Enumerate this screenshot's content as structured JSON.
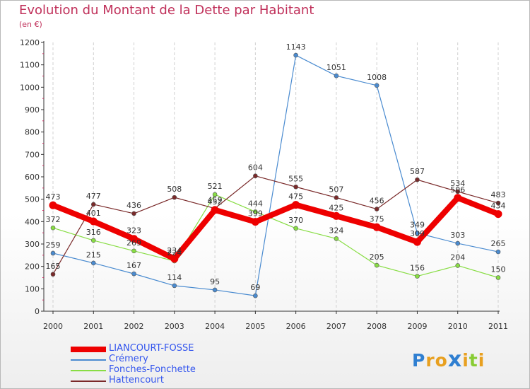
{
  "header": {
    "title": "Evolution du Montant de la Dette par Habitant",
    "subtitle": "(en €)"
  },
  "colors": {
    "title": "#c0305a",
    "axis": "#333333",
    "grid": "#d0d0d0",
    "legend_text": "#3355ee"
  },
  "chart_data": {
    "type": "line",
    "title": "Evolution du Montant de la Dette par Habitant",
    "subtitle": "(en €)",
    "x": [
      "2000",
      "2001",
      "2002",
      "2003",
      "2004",
      "2005",
      "2006",
      "2007",
      "2008",
      "2009",
      "2010",
      "2011"
    ],
    "ylim": [
      0,
      1200
    ],
    "yticks": [
      0,
      100,
      200,
      300,
      400,
      500,
      600,
      700,
      800,
      900,
      1000,
      1100,
      1200
    ],
    "grid": "vertical dashed",
    "legend_placement": "bottom-left",
    "series": [
      {
        "name": "LIANCOURT-FOSSE",
        "color": "#ee0000",
        "values": [
          473,
          401,
          323,
          234,
          452,
          399,
          475,
          425,
          375,
          309,
          506,
          434
        ],
        "labels": [
          "473",
          "401",
          "323",
          "234",
          "452",
          "399",
          "475",
          "425",
          "375",
          "309",
          "506",
          "434"
        ]
      },
      {
        "name": "Crémery",
        "color": "#4a8bd0",
        "values": [
          259,
          215,
          167,
          114,
          95,
          69,
          1143,
          1051,
          1008,
          349,
          303,
          265
        ],
        "labels": [
          "259",
          "215",
          "167",
          "114",
          "95",
          "69",
          "1143",
          "1051",
          "1008",
          "349",
          "303",
          "265"
        ]
      },
      {
        "name": "Fonches-Fonchette",
        "color": "#88dd44",
        "values": [
          372,
          316,
          269,
          224,
          521,
          444,
          370,
          324,
          205,
          156,
          204,
          150
        ],
        "labels": [
          "372",
          "316",
          "269",
          "224",
          "521",
          "444",
          "370",
          "324",
          "205",
          "156",
          "204",
          "150"
        ]
      },
      {
        "name": "Hattencourt",
        "color": "#7a2a2a",
        "values": [
          165,
          477,
          436,
          508,
          459,
          604,
          555,
          507,
          456,
          587,
          534,
          483
        ],
        "labels": [
          "165",
          "477",
          "436",
          "508",
          "459",
          "604",
          "555",
          "507",
          "456",
          "587",
          "534",
          "483"
        ]
      }
    ]
  },
  "logo": {
    "letters": [
      "P",
      "r",
      "o",
      "x",
      "i",
      "t",
      "i"
    ],
    "colors": [
      "#2f7fd1",
      "#e8a020",
      "#e8a020",
      "#2f7fd1",
      "#e8a020",
      "#88cc33",
      "#e8a020"
    ]
  }
}
